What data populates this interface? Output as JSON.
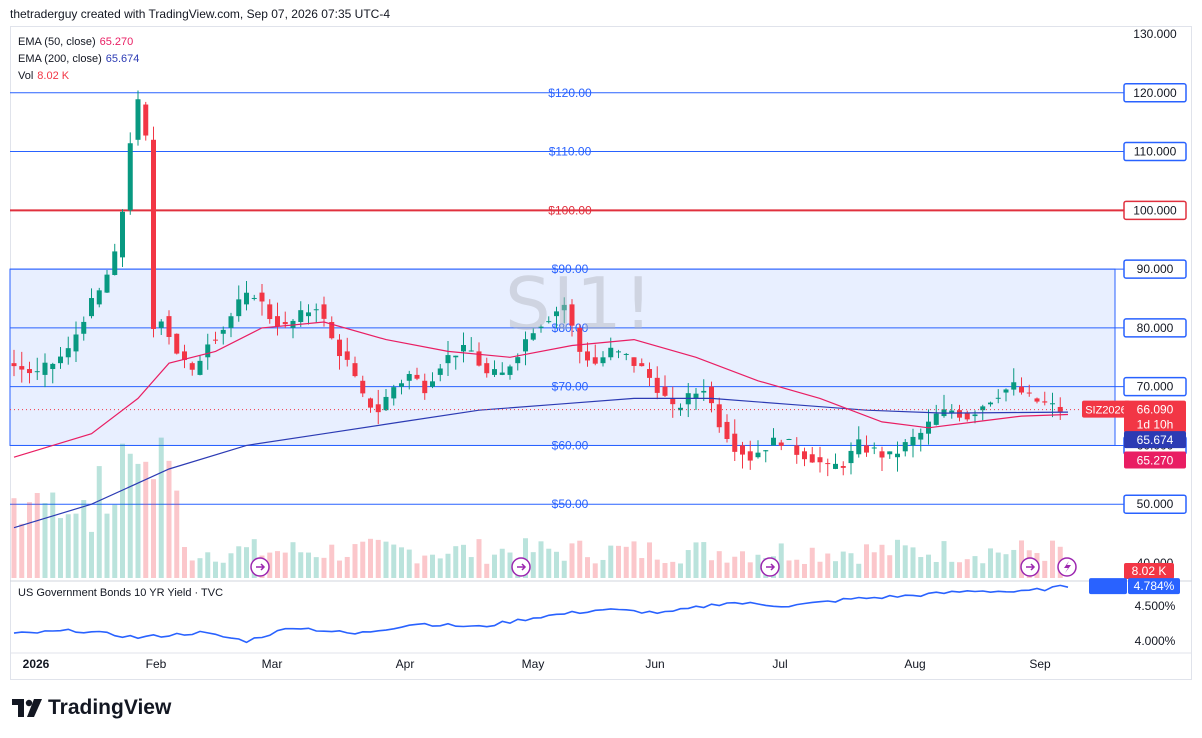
{
  "header": {
    "byline": "thetraderguy created with TradingView.com, Sep 07, 2026 07:35 UTC-4"
  },
  "legend": {
    "ema50_label": "EMA (50, close)",
    "ema50_value": "65.270",
    "ema200_label": "EMA (200, close)",
    "ema200_value": "65.674",
    "vol_label": "Vol",
    "vol_value": "8.02 K"
  },
  "watermark": "SI1!",
  "price_badge": {
    "symbol": "SIZ2026",
    "price": "66.090",
    "countdown": "1d 10h"
  },
  "sub_pane": {
    "title": "US Government Bonds 10 YR Yield · TVC",
    "symbol": "US10Y",
    "value": "4.784%"
  },
  "brand": "TradingView",
  "colors": {
    "ema50": "#e91e63",
    "ema200": "#2c3bb4",
    "up": "#089981",
    "down": "#f23645",
    "level": "#2962ff",
    "level_100": "#e0303e",
    "zone": "#e8efff",
    "yield": "#2962ff"
  },
  "chart_data": [
    {
      "type": "candlestick",
      "x_ticks": [
        "2026",
        "Feb",
        "Mar",
        "Apr",
        "May",
        "Jun",
        "Jul",
        "Aug",
        "Sep"
      ],
      "y_ticks_right": [
        "130.000",
        "120.000",
        "110.000",
        "100.000",
        "90.000",
        "80.000",
        "70.000",
        "60.000",
        "50.000",
        "40.000"
      ],
      "ylim": [
        40,
        130
      ],
      "horizontal_levels": [
        {
          "value": 120,
          "label": "$120.00",
          "axis_label": "120.000"
        },
        {
          "value": 110,
          "label": "$110.00",
          "axis_label": "110.000"
        },
        {
          "value": 100,
          "label": "$100.00",
          "axis_label": "100.000"
        },
        {
          "value": 90,
          "label": "$90.00",
          "axis_label": "90.000"
        },
        {
          "value": 80,
          "label": "$80.00",
          "axis_label": "80.000"
        },
        {
          "value": 70,
          "label": "$70.00",
          "axis_label": "70.000"
        },
        {
          "value": 60,
          "label": "$60.00",
          "axis_label": "60.000"
        },
        {
          "value": 50,
          "label": "$50.00",
          "axis_label": "50.000"
        }
      ],
      "zone": {
        "low": 60,
        "high": 90
      },
      "ema_values": {
        "ema50": "65.270",
        "ema200": "65.674"
      },
      "last_price": 66.09,
      "close_path": [
        [
          0,
          74
        ],
        [
          4,
          72
        ],
        [
          8,
          76
        ],
        [
          10,
          82
        ],
        [
          12,
          86
        ],
        [
          14,
          92
        ],
        [
          15,
          100
        ],
        [
          16,
          112
        ],
        [
          17,
          118
        ],
        [
          18,
          112
        ],
        [
          18.5,
          78
        ],
        [
          19,
          80
        ],
        [
          20,
          82
        ],
        [
          22,
          76
        ],
        [
          24,
          72
        ],
        [
          26,
          78
        ],
        [
          28,
          80
        ],
        [
          30,
          84
        ],
        [
          32,
          86
        ],
        [
          34,
          82
        ],
        [
          36,
          80
        ],
        [
          38,
          82
        ],
        [
          40,
          84
        ],
        [
          42,
          78
        ],
        [
          44,
          74
        ],
        [
          46,
          68
        ],
        [
          48,
          66
        ],
        [
          50,
          70
        ],
        [
          52,
          72
        ],
        [
          54,
          70
        ],
        [
          56,
          74
        ],
        [
          58,
          76
        ],
        [
          60,
          76
        ],
        [
          62,
          72
        ],
        [
          64,
          72
        ],
        [
          66,
          76
        ],
        [
          68,
          80
        ],
        [
          70,
          82
        ],
        [
          72,
          84
        ],
        [
          74,
          76
        ],
        [
          76,
          74
        ],
        [
          78,
          76
        ],
        [
          80,
          75
        ],
        [
          82,
          73
        ],
        [
          84,
          70
        ],
        [
          86,
          66
        ],
        [
          88,
          68
        ],
        [
          90,
          70
        ],
        [
          92,
          64
        ],
        [
          94,
          60
        ],
        [
          96,
          58
        ],
        [
          98,
          60
        ],
        [
          100,
          61
        ],
        [
          102,
          59
        ],
        [
          104,
          58
        ],
        [
          106,
          56
        ],
        [
          108,
          57
        ],
        [
          110,
          60
        ],
        [
          112,
          59
        ],
        [
          114,
          58
        ],
        [
          116,
          60
        ],
        [
          118,
          62
        ],
        [
          120,
          65
        ],
        [
          122,
          66
        ],
        [
          124,
          65
        ],
        [
          126,
          67
        ],
        [
          128,
          69
        ],
        [
          130,
          70
        ],
        [
          132,
          68
        ],
        [
          134,
          67
        ],
        [
          136,
          66.09
        ]
      ],
      "ema50_path": [
        [
          0,
          58
        ],
        [
          10,
          62
        ],
        [
          16,
          68
        ],
        [
          20,
          74
        ],
        [
          26,
          76
        ],
        [
          32,
          80
        ],
        [
          40,
          81
        ],
        [
          48,
          78
        ],
        [
          56,
          76
        ],
        [
          64,
          75
        ],
        [
          72,
          77
        ],
        [
          80,
          78
        ],
        [
          88,
          75
        ],
        [
          96,
          71
        ],
        [
          104,
          68
        ],
        [
          112,
          64
        ],
        [
          118,
          63
        ],
        [
          124,
          64
        ],
        [
          130,
          65
        ],
        [
          136,
          65.27
        ]
      ],
      "ema200_path": [
        [
          0,
          46
        ],
        [
          10,
          50
        ],
        [
          20,
          56
        ],
        [
          30,
          60
        ],
        [
          40,
          62
        ],
        [
          50,
          64
        ],
        [
          60,
          66
        ],
        [
          70,
          67
        ],
        [
          80,
          68
        ],
        [
          90,
          68
        ],
        [
          100,
          67
        ],
        [
          110,
          66
        ],
        [
          120,
          65.5
        ],
        [
          130,
          65.6
        ],
        [
          136,
          65.674
        ]
      ],
      "volume_value": "8.02 K"
    },
    {
      "type": "line",
      "name": "US10Y",
      "y_ticks_right": [
        "4.500%",
        "4.000%"
      ],
      "last_value": "4.784%",
      "path": [
        [
          0,
          4.1
        ],
        [
          8,
          4.15
        ],
        [
          16,
          4.05
        ],
        [
          24,
          4.12
        ],
        [
          30,
          4.0
        ],
        [
          36,
          4.2
        ],
        [
          44,
          4.1
        ],
        [
          52,
          4.25
        ],
        [
          60,
          4.2
        ],
        [
          68,
          4.35
        ],
        [
          76,
          4.45
        ],
        [
          84,
          4.4
        ],
        [
          92,
          4.55
        ],
        [
          100,
          4.5
        ],
        [
          108,
          4.6
        ],
        [
          116,
          4.65
        ],
        [
          124,
          4.72
        ],
        [
          130,
          4.7
        ],
        [
          136,
          4.784
        ]
      ]
    }
  ]
}
